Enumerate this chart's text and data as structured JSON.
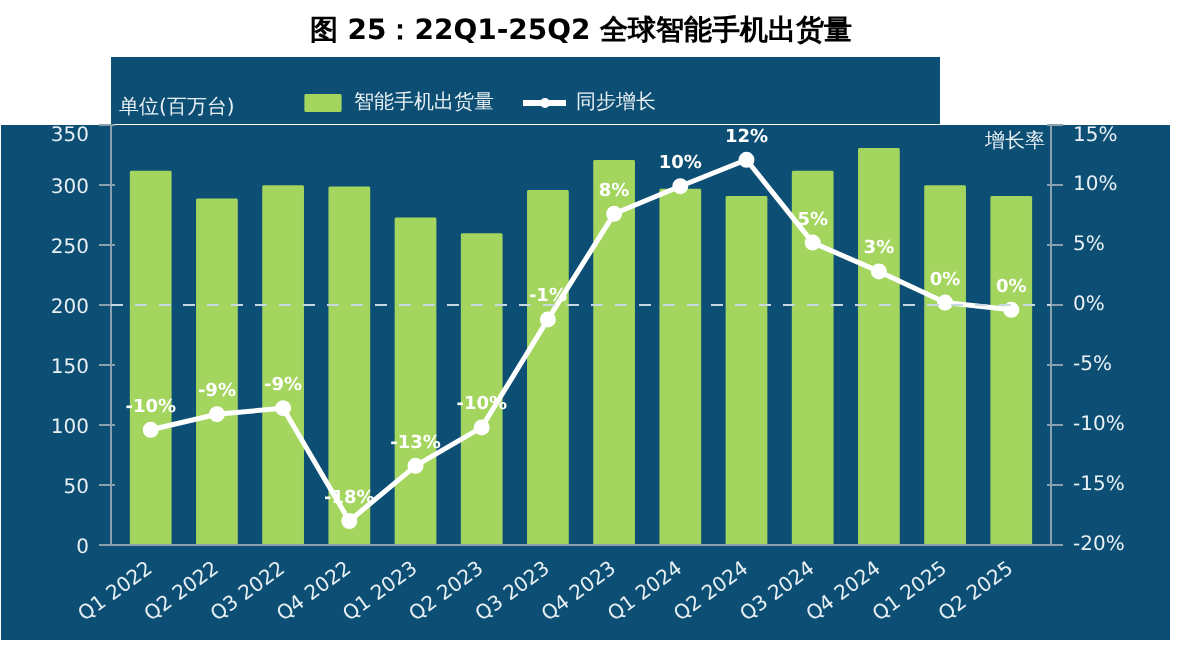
{
  "chart_data": {
    "type": "bar",
    "title": "图 25：22Q1-25Q2 全球智能手机出货量",
    "ylabel": "单位(百万台)",
    "y2label": "增长率",
    "categories": [
      "Q1 2022",
      "Q2 2022",
      "Q3 2022",
      "Q4 2022",
      "Q1 2023",
      "Q2 2023",
      "Q3 2023",
      "Q4 2023",
      "Q1 2024",
      "Q2 2024",
      "Q3 2024",
      "Q4 2024",
      "Q1 2025",
      "Q2 2025"
    ],
    "series": [
      {
        "name": "智能手机出货量",
        "color": "#a3d55f",
        "values": [
          311,
          288,
          299,
          298,
          272,
          259,
          295,
          320,
          296,
          290,
          311,
          330,
          299,
          290
        ]
      },
      {
        "name": "同步增长",
        "type": "line",
        "axis": "y2",
        "color": "#ffffff",
        "marker": "circle",
        "values": [
          -10.4,
          -9.1,
          -8.6,
          -18,
          -13.4,
          -10.2,
          -1.2,
          7.6,
          9.9,
          12.1,
          5.2,
          2.8,
          0.2,
          -0.4
        ],
        "value_labels": [
          "-10%",
          "-9%",
          "-9%",
          "-18%",
          "-13%",
          "-10%",
          "-1%",
          "8%",
          "10%",
          "12%",
          "5%",
          "3%",
          "0%",
          "0%"
        ]
      }
    ],
    "ylim": [
      0,
      350
    ],
    "yticks": [
      0,
      50,
      100,
      150,
      200,
      250,
      300,
      350
    ],
    "y2lim": [
      -20,
      15
    ],
    "y2ticks": [
      {
        "value": -20,
        "label": "-20%"
      },
      {
        "value": -15,
        "label": "-15%"
      },
      {
        "value": -10,
        "label": "-10%"
      },
      {
        "value": -5,
        "label": "-5%"
      },
      {
        "value": 0,
        "label": "0%"
      },
      {
        "value": 5,
        "label": "5%"
      },
      {
        "value": 10,
        "label": "10%"
      },
      {
        "value": 15,
        "label": "15%"
      }
    ],
    "ref_lines": [
      {
        "axis": "y",
        "value": 200,
        "color": "#c8d8e0",
        "line_style": "dashed"
      }
    ],
    "grid": false,
    "legend": "top"
  }
}
